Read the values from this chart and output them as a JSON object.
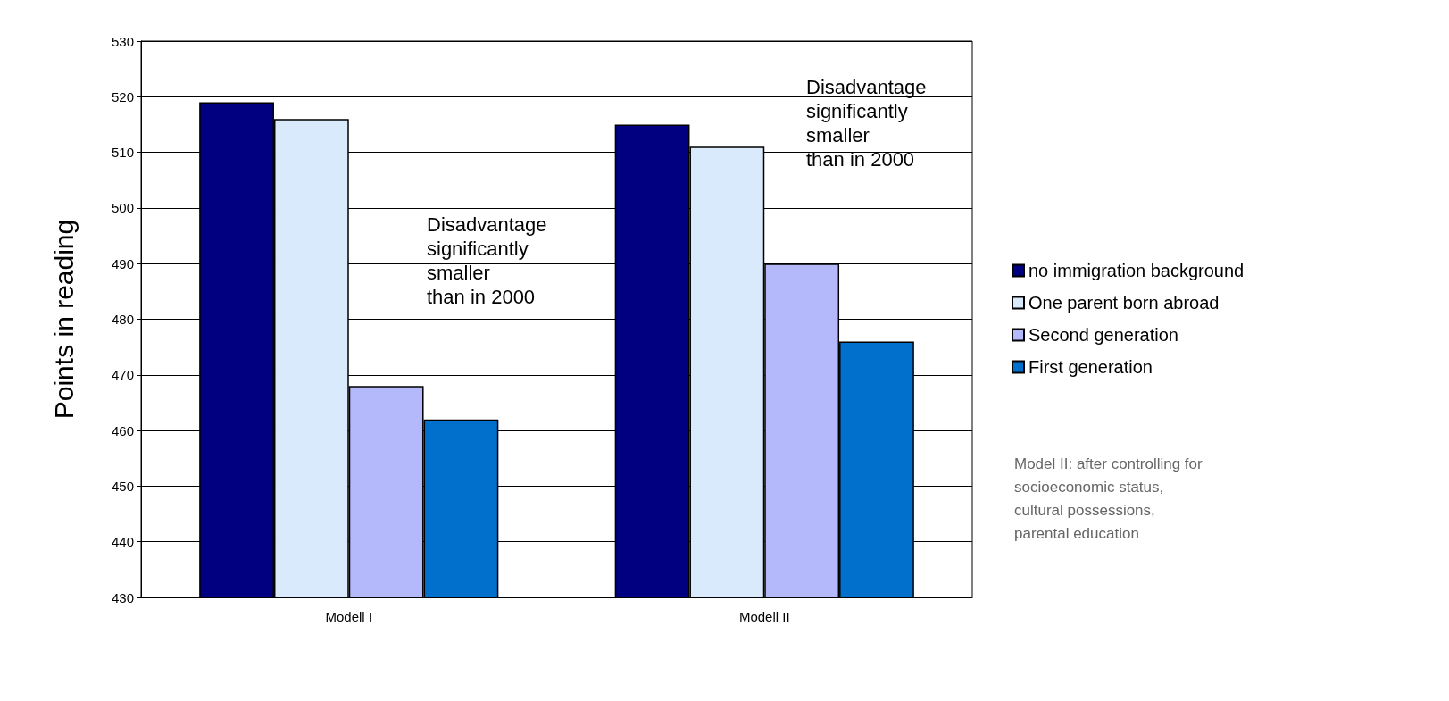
{
  "chart_data": {
    "type": "bar",
    "ylabel": "Points in reading",
    "categories": [
      "Modell I",
      "Modell II"
    ],
    "series": [
      {
        "name": "no immigration background",
        "color": "#000080",
        "values": [
          519,
          515
        ]
      },
      {
        "name": "One parent born abroad",
        "color": "#d8eafb",
        "values": [
          516,
          511
        ]
      },
      {
        "name": "Second generation",
        "color": "#b3b9fa",
        "values": [
          468,
          490
        ]
      },
      {
        "name": "First generation",
        "color": "#0070cc",
        "values": [
          462,
          476
        ]
      }
    ],
    "ylim": [
      430,
      530
    ],
    "yticks": [
      430,
      440,
      450,
      460,
      470,
      480,
      490,
      500,
      510,
      520,
      530
    ],
    "grid": "y",
    "legend": "right",
    "annotations": [
      "Disadvantage\nsignificantly\nsmaller\nthan in 2000",
      "Disadvantage\nsignificantly\nsmaller\nthan in 2000",
      "Model II: after controlling for\nsocioeconomic status,\ncultural possessions,\nparental education"
    ]
  }
}
